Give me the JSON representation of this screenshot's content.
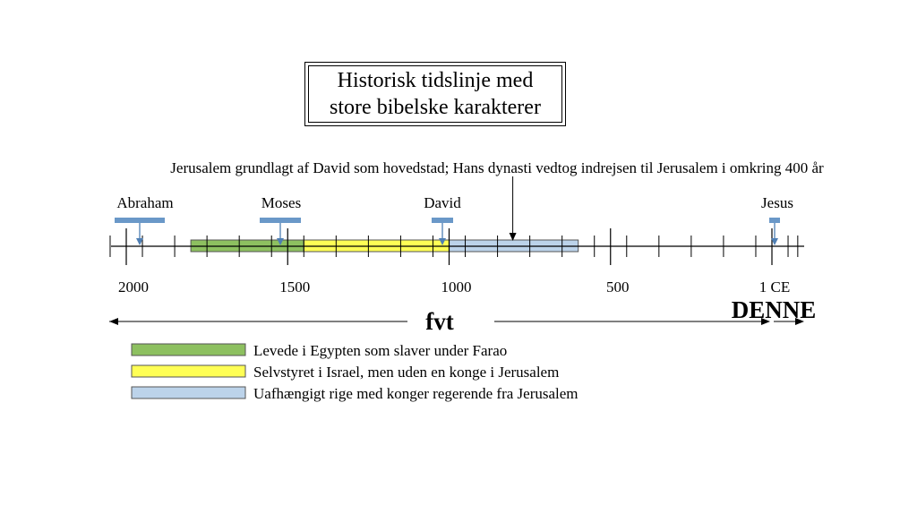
{
  "title": {
    "line1": "Historisk tidslinje med",
    "line2": "store bibelske karakterer"
  },
  "annotation": "Jerusalem grundlagt af David som hovedstad; Hans dynasti vedtog indrejsen til Jerusalem i omkring 400 år",
  "people": [
    {
      "name": "Abraham",
      "year_bce": 1950
    },
    {
      "name": "Moses",
      "year_bce": 1500
    },
    {
      "name": "David",
      "year_bce": 1000
    },
    {
      "name": "Jesus",
      "year_bce": 0
    }
  ],
  "axis": {
    "tick_labels": [
      "2000",
      "1500",
      "1000",
      "500",
      "1 CE"
    ],
    "bce_label": "fvt",
    "ce_label": "DENNE"
  },
  "periods": [
    {
      "label": "Levede i Egypten som slaver under Farao",
      "start_bce": 1800,
      "end_bce": 1450,
      "color": "#8dc060"
    },
    {
      "label": "Selvstyret i Israel, men uden en konge i Jerusalem",
      "start_bce": 1450,
      "end_bce": 1000,
      "color": "#ffff55"
    },
    {
      "label": "Uafhængigt rige med konger regerende fra Jerusalem",
      "start_bce": 1000,
      "end_bce": 600,
      "color": "#bcd3ea"
    }
  ],
  "annotation_arrow_year_bce": 800,
  "colors": {
    "marker": "#6a98c8",
    "marker_dark": "#4f7fb4"
  }
}
